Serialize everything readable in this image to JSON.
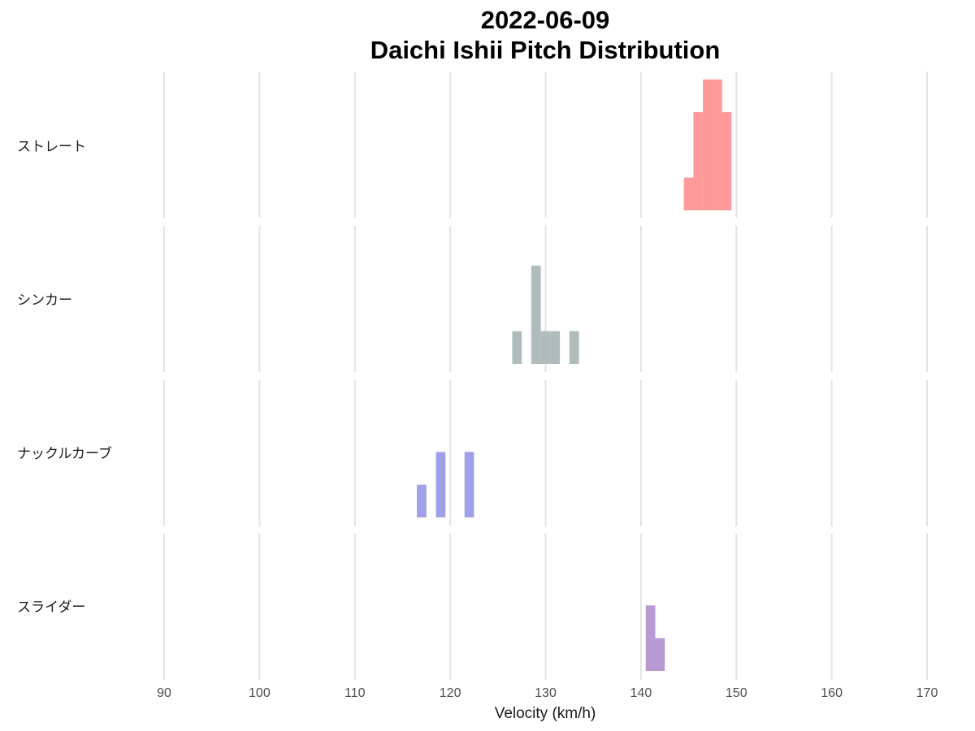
{
  "chart_data": {
    "type": "bar",
    "title": "2022-06-09",
    "subtitle": "Daichi Ishii Pitch Distribution",
    "xlabel": "Velocity (km/h)",
    "ylabel": "",
    "xlim": [
      83,
      172
    ],
    "xticks": [
      90,
      100,
      110,
      120,
      130,
      140,
      150,
      160,
      170
    ],
    "bin_width": 1,
    "grid": "vertical",
    "legend": "none",
    "series": [
      {
        "name": "ストレート",
        "color": "#ff9999",
        "bins": [
          {
            "x": 145,
            "count": 1
          },
          {
            "x": 146,
            "count": 3
          },
          {
            "x": 147,
            "count": 4
          },
          {
            "x": 148,
            "count": 4
          },
          {
            "x": 149,
            "count": 3
          }
        ]
      },
      {
        "name": "シンカー",
        "color": "#b0bcbc",
        "bins": [
          {
            "x": 127,
            "count": 1
          },
          {
            "x": 129,
            "count": 3
          },
          {
            "x": 130,
            "count": 1
          },
          {
            "x": 131,
            "count": 1
          },
          {
            "x": 133,
            "count": 1
          }
        ]
      },
      {
        "name": "ナックルカーブ",
        "color": "#a0a0e8",
        "bins": [
          {
            "x": 117,
            "count": 1
          },
          {
            "x": 119,
            "count": 2
          },
          {
            "x": 122,
            "count": 2
          }
        ]
      },
      {
        "name": "スライダー",
        "color": "#b89ad2",
        "bins": [
          {
            "x": 141,
            "count": 2
          },
          {
            "x": 142,
            "count": 1
          }
        ]
      }
    ]
  }
}
